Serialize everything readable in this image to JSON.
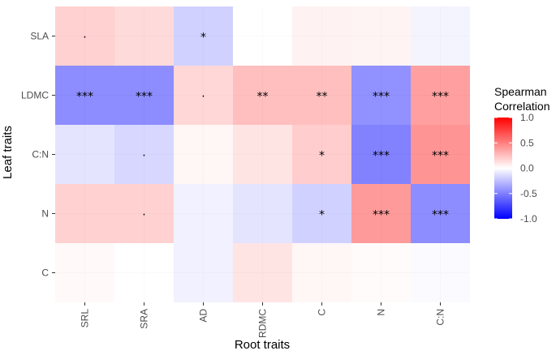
{
  "chart_data": {
    "type": "heatmap",
    "xlabel": "Root traits",
    "ylabel": "Leaf traits",
    "x_categories": [
      "SRL",
      "SRA",
      "AD",
      "RDMC",
      "C",
      "N",
      "C:N"
    ],
    "y_categories": [
      "SLA",
      "LDMC",
      "C:N",
      "N",
      "C"
    ],
    "values": [
      [
        0.25,
        0.2,
        -0.25,
        0.0,
        0.07,
        0.06,
        -0.06
      ],
      [
        -0.62,
        -0.62,
        0.22,
        0.35,
        0.35,
        -0.6,
        0.52
      ],
      [
        -0.15,
        -0.22,
        0.05,
        0.15,
        0.27,
        -0.68,
        0.58
      ],
      [
        0.25,
        0.25,
        -0.08,
        -0.15,
        -0.25,
        0.55,
        -0.62
      ],
      [
        0.03,
        0.0,
        -0.08,
        0.15,
        0.05,
        0.02,
        -0.02
      ]
    ],
    "significance": [
      [
        ".",
        "",
        "*",
        "",
        "",
        "",
        ""
      ],
      [
        "***",
        "***",
        ".",
        "**",
        "**",
        "***",
        "***"
      ],
      [
        "",
        ".",
        "",
        "",
        "*",
        "***",
        "***"
      ],
      [
        "",
        ".",
        "",
        "",
        "*",
        "***",
        "***"
      ],
      [
        "",
        "",
        "",
        "",
        "",
        "",
        ""
      ]
    ],
    "legend": {
      "title_lines": [
        "Spearman",
        "Correlation"
      ],
      "ticks": [
        1.0,
        0.5,
        0.0,
        -0.5,
        -1.0
      ],
      "tick_labels": [
        "1.0",
        "0.5",
        "0.0",
        "-0.5",
        "-1.0"
      ],
      "limits": [
        -1,
        1
      ],
      "low_color": "#0000FF",
      "mid_color": "#FFFFFF",
      "high_color": "#FF0000"
    },
    "grid": true
  }
}
